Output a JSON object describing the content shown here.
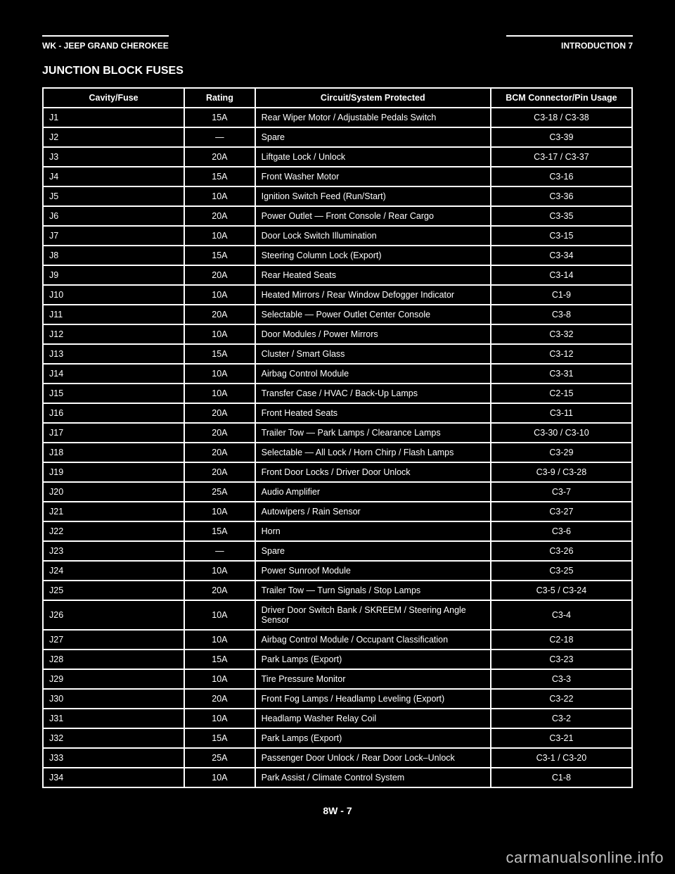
{
  "header": {
    "left": "WK - JEEP GRAND CHEROKEE",
    "right": "INTRODUCTION  7"
  },
  "section_title": "JUNCTION BLOCK FUSES",
  "table": {
    "columns": [
      "Cavity/Fuse",
      "Rating",
      "Circuit/System Protected",
      "BCM Connector/Pin Usage"
    ],
    "col_widths_pct": [
      24,
      12,
      40,
      24
    ],
    "border_color": "#ffffff",
    "row_bg": "#000000",
    "text_color": "#ffffff",
    "font_size_pt": 9,
    "rows": [
      [
        "J1",
        "15A",
        "Rear Wiper Motor / Adjustable Pedals Switch",
        "C3-18 / C3-38"
      ],
      [
        "J2",
        "—",
        "Spare",
        "C3-39"
      ],
      [
        "J3",
        "20A",
        "Liftgate Lock / Unlock",
        "C3-17 / C3-37"
      ],
      [
        "J4",
        "15A",
        "Front Washer Motor",
        "C3-16"
      ],
      [
        "J5",
        "10A",
        "Ignition Switch Feed (Run/Start)",
        "C3-36"
      ],
      [
        "J6",
        "20A",
        "Power Outlet — Front Console / Rear Cargo",
        "C3-35"
      ],
      [
        "J7",
        "10A",
        "Door Lock Switch Illumination",
        "C3-15"
      ],
      [
        "J8",
        "15A",
        "Steering Column Lock (Export)",
        "C3-34"
      ],
      [
        "J9",
        "20A",
        "Rear Heated Seats",
        "C3-14"
      ],
      [
        "J10",
        "10A",
        "Heated Mirrors / Rear Window Defogger Indicator",
        "C1-9"
      ],
      [
        "J11",
        "20A",
        "Selectable — Power Outlet Center Console",
        "C3-8"
      ],
      [
        "J12",
        "10A",
        "Door Modules / Power Mirrors",
        "C3-32"
      ],
      [
        "J13",
        "15A",
        "Cluster / Smart Glass",
        "C3-12"
      ],
      [
        "J14",
        "10A",
        "Airbag Control Module",
        "C3-31"
      ],
      [
        "J15",
        "10A",
        "Transfer Case / HVAC / Back-Up Lamps",
        "C2-15"
      ],
      [
        "J16",
        "20A",
        "Front Heated Seats",
        "C3-11"
      ],
      [
        "J17",
        "20A",
        "Trailer Tow — Park Lamps / Clearance Lamps",
        "C3-30 / C3-10"
      ],
      [
        "J18",
        "20A",
        "Selectable — All Lock / Horn Chirp / Flash Lamps",
        "C3-29"
      ],
      [
        "J19",
        "20A",
        "Front Door Locks / Driver Door Unlock",
        "C3-9 / C3-28"
      ],
      [
        "J20",
        "25A",
        "Audio Amplifier",
        "C3-7"
      ],
      [
        "J21",
        "10A",
        "Autowipers / Rain Sensor",
        "C3-27"
      ],
      [
        "J22",
        "15A",
        "Horn",
        "C3-6"
      ],
      [
        "J23",
        "—",
        "Spare",
        "C3-26"
      ],
      [
        "J24",
        "10A",
        "Power Sunroof Module",
        "C3-25"
      ],
      [
        "J25",
        "20A",
        "Trailer Tow — Turn Signals / Stop Lamps",
        "C3-5 / C3-24"
      ],
      [
        "J26",
        "10A",
        "Driver Door Switch Bank / SKREEM / Steering Angle Sensor",
        "C3-4"
      ],
      [
        "J27",
        "10A",
        "Airbag Control Module / Occupant Classification",
        "C2-18"
      ],
      [
        "J28",
        "15A",
        "Park Lamps (Export)",
        "C3-23"
      ],
      [
        "J29",
        "10A",
        "Tire Pressure Monitor",
        "C3-3"
      ],
      [
        "J30",
        "20A",
        "Front Fog Lamps / Headlamp Leveling (Export)",
        "C3-22"
      ],
      [
        "J31",
        "10A",
        "Headlamp Washer Relay Coil",
        "C3-2"
      ],
      [
        "J32",
        "15A",
        "Park Lamps (Export)",
        "C3-21"
      ],
      [
        "J33",
        "25A",
        "Passenger Door Unlock / Rear Door Lock–Unlock",
        "C3-1 / C3-20"
      ],
      [
        "J34",
        "10A",
        "Park Assist / Climate Control System",
        "C1-8"
      ]
    ]
  },
  "page_number": "8W - 7",
  "watermark": "carmanualsonline.info"
}
